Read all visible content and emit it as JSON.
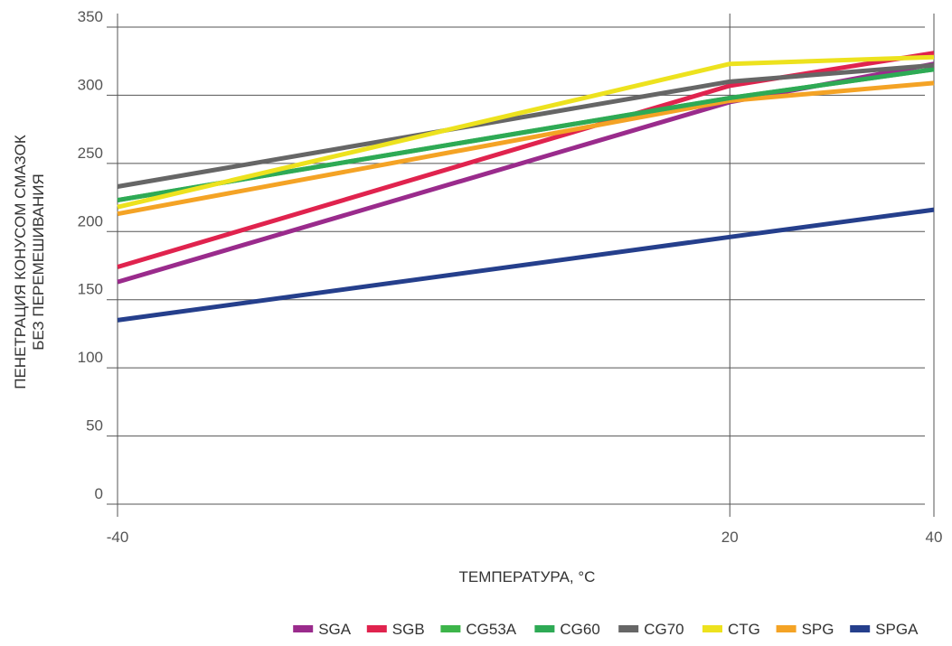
{
  "chart_data": {
    "type": "line",
    "xlabel": "ТЕМПЕРАТУРА, °С",
    "ylabel_lines": [
      "ПЕНЕТРАЦИЯ КОНУСОМ СМАЗОК",
      "БЕЗ ПЕРЕМЕШИВАНИЯ"
    ],
    "x": [
      -40,
      20,
      40
    ],
    "x_tick_labels": [
      "-40",
      "20",
      "40"
    ],
    "ylim": [
      0,
      350
    ],
    "y_ticks": [
      0,
      50,
      100,
      150,
      200,
      250,
      300,
      350
    ],
    "y_tick_labels": [
      "0",
      "50",
      "100",
      "150",
      "200",
      "250",
      "300",
      "350"
    ],
    "grid": "horizontal and vertical at ticks",
    "legend_position": "bottom",
    "series": [
      {
        "name": "SGA",
        "color": "#9a2b8c",
        "values": [
          163,
          295,
          323
        ]
      },
      {
        "name": "SGB",
        "color": "#e0234e",
        "values": [
          174,
          307,
          331
        ]
      },
      {
        "name": "CG53A",
        "color": "#3db54a",
        "values": [
          223,
          298,
          319
        ]
      },
      {
        "name": "CG60",
        "color": "#2eaa55",
        "values": [
          223,
          298,
          319
        ]
      },
      {
        "name": "CG70",
        "color": "#666666",
        "values": [
          233,
          310,
          322
        ]
      },
      {
        "name": "CTG",
        "color": "#ede21e",
        "values": [
          218,
          323,
          328
        ]
      },
      {
        "name": "SPG",
        "color": "#f4a325",
        "values": [
          213,
          296,
          309
        ]
      },
      {
        "name": "SPGA",
        "color": "#253f8c",
        "values": [
          135,
          196,
          216
        ]
      }
    ]
  }
}
